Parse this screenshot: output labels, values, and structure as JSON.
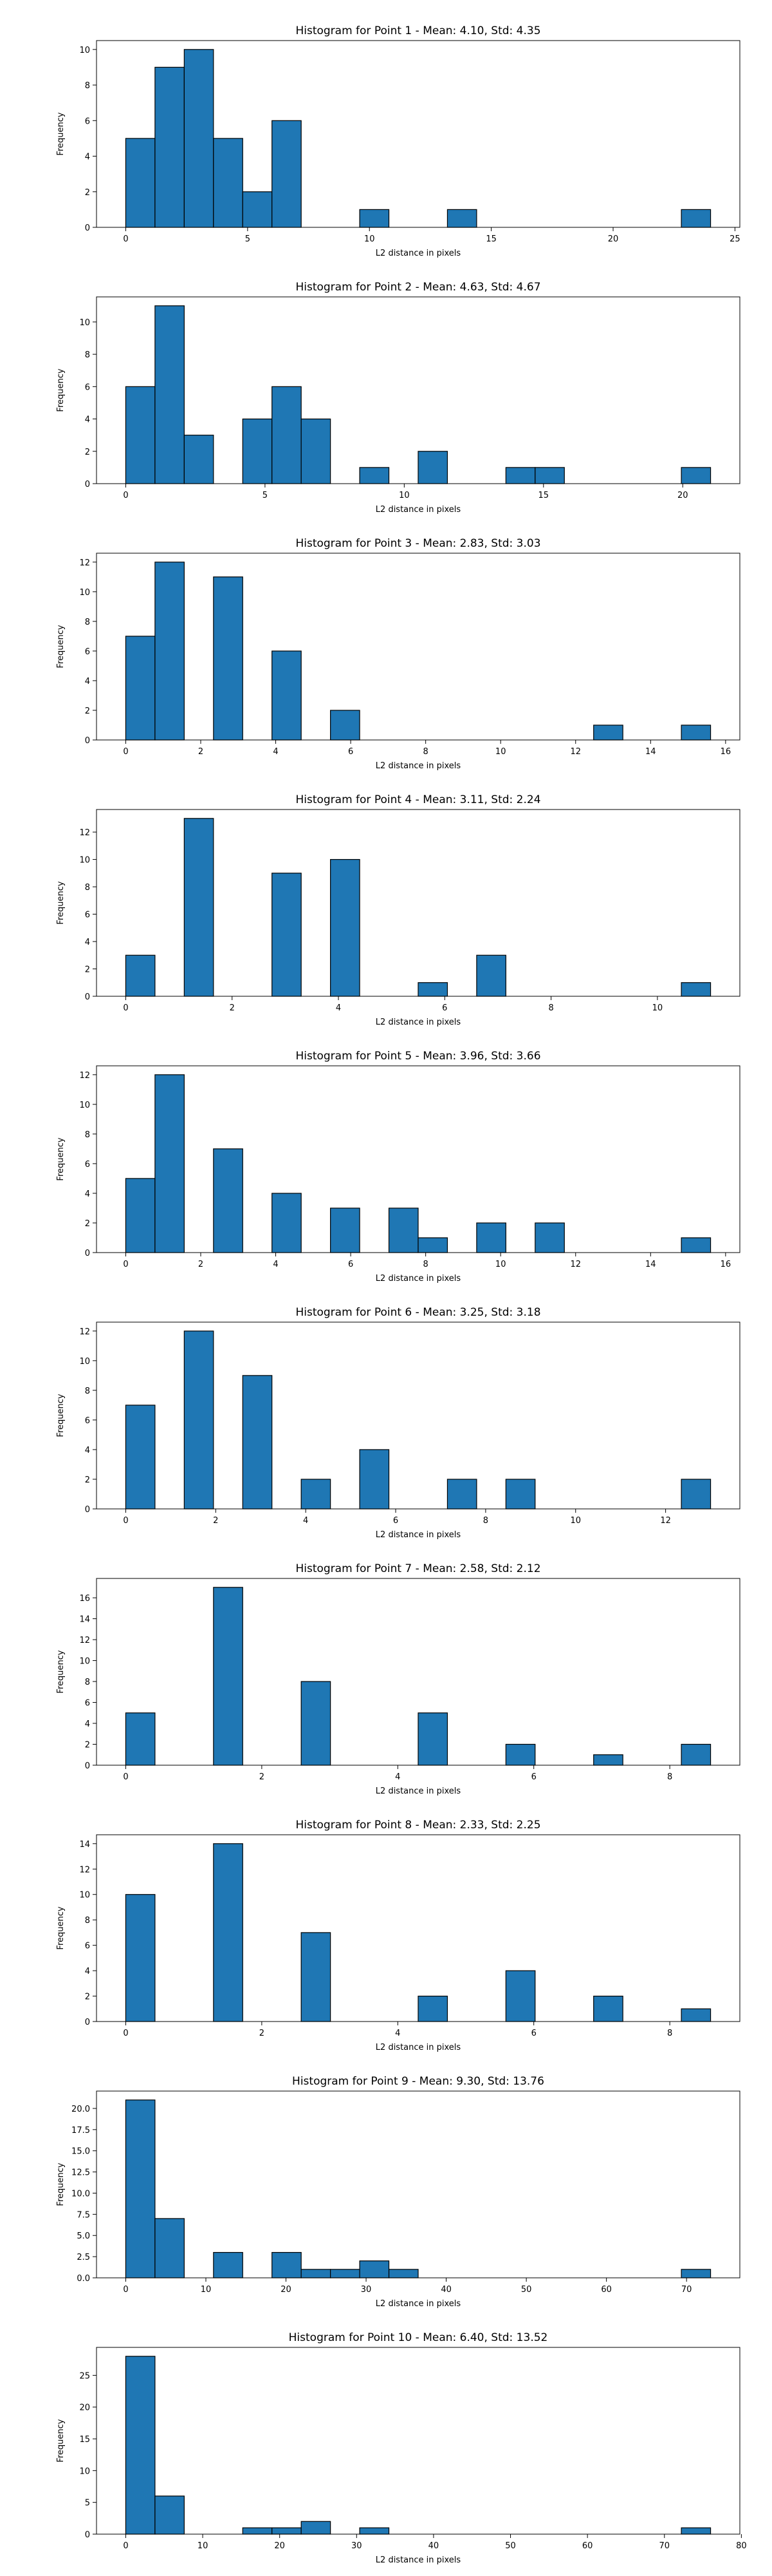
{
  "chart_data": [
    {
      "type": "bar",
      "title": "Histogram for Point 1 - Mean: 4.10, Std: 4.35",
      "xlabel": "L2 distance in pixels",
      "ylabel": "Frequency",
      "xlim": [
        -1.2,
        25.2
      ],
      "ylim": [
        0,
        10.5
      ],
      "xticks": [
        0,
        5,
        10,
        15,
        20,
        25
      ],
      "yticks": [
        0,
        2,
        4,
        6,
        8,
        10
      ],
      "bins": [
        {
          "x0": 0.0,
          "x1": 1.2,
          "count": 5
        },
        {
          "x0": 1.2,
          "x1": 2.4,
          "count": 9
        },
        {
          "x0": 2.4,
          "x1": 3.6,
          "count": 10
        },
        {
          "x0": 3.6,
          "x1": 4.8,
          "count": 5
        },
        {
          "x0": 4.8,
          "x1": 6.0,
          "count": 2
        },
        {
          "x0": 6.0,
          "x1": 7.2,
          "count": 6
        },
        {
          "x0": 9.6,
          "x1": 10.8,
          "count": 1
        },
        {
          "x0": 13.2,
          "x1": 14.4,
          "count": 1
        },
        {
          "x0": 22.8,
          "x1": 24.0,
          "count": 1
        }
      ]
    },
    {
      "type": "bar",
      "title": "Histogram for Point 2 - Mean: 4.63, Std: 4.67",
      "xlabel": "L2 distance in pixels",
      "ylabel": "Frequency",
      "xlim": [
        -1.05,
        22.05
      ],
      "ylim": [
        0,
        11.55
      ],
      "xticks": [
        0,
        5,
        10,
        15,
        20
      ],
      "yticks": [
        0,
        2,
        4,
        6,
        8,
        10
      ],
      "bins": [
        {
          "x0": 0.0,
          "x1": 1.05,
          "count": 6
        },
        {
          "x0": 1.05,
          "x1": 2.1,
          "count": 11
        },
        {
          "x0": 2.1,
          "x1": 3.15,
          "count": 3
        },
        {
          "x0": 4.2,
          "x1": 5.25,
          "count": 4
        },
        {
          "x0": 5.25,
          "x1": 6.3,
          "count": 6
        },
        {
          "x0": 6.3,
          "x1": 7.35,
          "count": 4
        },
        {
          "x0": 8.4,
          "x1": 9.45,
          "count": 1
        },
        {
          "x0": 10.5,
          "x1": 11.55,
          "count": 2
        },
        {
          "x0": 13.65,
          "x1": 14.7,
          "count": 1
        },
        {
          "x0": 14.7,
          "x1": 15.75,
          "count": 1
        },
        {
          "x0": 19.95,
          "x1": 21.0,
          "count": 1
        }
      ]
    },
    {
      "type": "bar",
      "title": "Histogram for Point 3 - Mean: 2.83, Std: 3.03",
      "xlabel": "L2 distance in pixels",
      "ylabel": "Frequency",
      "xlim": [
        -0.78,
        16.38
      ],
      "ylim": [
        0,
        12.6
      ],
      "xticks": [
        0,
        2,
        4,
        6,
        8,
        10,
        12,
        14,
        16
      ],
      "yticks": [
        0,
        2,
        4,
        6,
        8,
        10,
        12
      ],
      "bins": [
        {
          "x0": 0.0,
          "x1": 0.78,
          "count": 7
        },
        {
          "x0": 0.78,
          "x1": 1.56,
          "count": 12
        },
        {
          "x0": 2.34,
          "x1": 3.12,
          "count": 11
        },
        {
          "x0": 3.9,
          "x1": 4.68,
          "count": 6
        },
        {
          "x0": 5.46,
          "x1": 6.24,
          "count": 2
        },
        {
          "x0": 12.48,
          "x1": 13.26,
          "count": 1
        },
        {
          "x0": 14.82,
          "x1": 15.6,
          "count": 1
        }
      ]
    },
    {
      "type": "bar",
      "title": "Histogram for Point 4 - Mean: 3.11, Std: 2.24",
      "xlabel": "L2 distance in pixels",
      "ylabel": "Frequency",
      "xlim": [
        -0.55,
        11.55
      ],
      "ylim": [
        0,
        13.65
      ],
      "xticks": [
        0,
        2,
        4,
        6,
        8,
        10
      ],
      "yticks": [
        0,
        2,
        4,
        6,
        8,
        10,
        12
      ],
      "bins": [
        {
          "x0": 0.0,
          "x1": 0.55,
          "count": 3
        },
        {
          "x0": 1.1,
          "x1": 1.65,
          "count": 13
        },
        {
          "x0": 2.75,
          "x1": 3.3,
          "count": 9
        },
        {
          "x0": 3.85,
          "x1": 4.4,
          "count": 10
        },
        {
          "x0": 5.5,
          "x1": 6.05,
          "count": 1
        },
        {
          "x0": 6.6,
          "x1": 7.15,
          "count": 3
        },
        {
          "x0": 10.45,
          "x1": 11.0,
          "count": 1
        }
      ]
    },
    {
      "type": "bar",
      "title": "Histogram for Point 5 - Mean: 3.96, Std: 3.66",
      "xlabel": "L2 distance in pixels",
      "ylabel": "Frequency",
      "xlim": [
        -0.78,
        16.38
      ],
      "ylim": [
        0,
        12.6
      ],
      "xticks": [
        0,
        2,
        4,
        6,
        8,
        10,
        12,
        14,
        16
      ],
      "yticks": [
        0,
        2,
        4,
        6,
        8,
        10,
        12
      ],
      "bins": [
        {
          "x0": 0.0,
          "x1": 0.78,
          "count": 5
        },
        {
          "x0": 0.78,
          "x1": 1.56,
          "count": 12
        },
        {
          "x0": 2.34,
          "x1": 3.12,
          "count": 7
        },
        {
          "x0": 3.9,
          "x1": 4.68,
          "count": 4
        },
        {
          "x0": 5.46,
          "x1": 6.24,
          "count": 3
        },
        {
          "x0": 7.02,
          "x1": 7.8,
          "count": 3
        },
        {
          "x0": 7.8,
          "x1": 8.58,
          "count": 1
        },
        {
          "x0": 9.36,
          "x1": 10.14,
          "count": 2
        },
        {
          "x0": 10.92,
          "x1": 11.7,
          "count": 2
        },
        {
          "x0": 14.82,
          "x1": 15.6,
          "count": 1
        }
      ]
    },
    {
      "type": "bar",
      "title": "Histogram for Point 6 - Mean: 3.25, Std: 3.18",
      "xlabel": "L2 distance in pixels",
      "ylabel": "Frequency",
      "xlim": [
        -0.65,
        13.65
      ],
      "ylim": [
        0,
        12.6
      ],
      "xticks": [
        0,
        2,
        4,
        6,
        8,
        10,
        12
      ],
      "yticks": [
        0,
        2,
        4,
        6,
        8,
        10,
        12
      ],
      "bins": [
        {
          "x0": 0.0,
          "x1": 0.65,
          "count": 7
        },
        {
          "x0": 1.3,
          "x1": 1.95,
          "count": 12
        },
        {
          "x0": 2.6,
          "x1": 3.25,
          "count": 9
        },
        {
          "x0": 3.9,
          "x1": 4.55,
          "count": 2
        },
        {
          "x0": 5.2,
          "x1": 5.85,
          "count": 4
        },
        {
          "x0": 7.15,
          "x1": 7.8,
          "count": 2
        },
        {
          "x0": 8.45,
          "x1": 9.1,
          "count": 2
        },
        {
          "x0": 12.35,
          "x1": 13.0,
          "count": 2
        }
      ]
    },
    {
      "type": "bar",
      "title": "Histogram for Point 7 - Mean: 2.58, Std: 2.12",
      "xlabel": "L2 distance in pixels",
      "ylabel": "Frequency",
      "xlim": [
        -0.43,
        9.03
      ],
      "ylim": [
        0,
        17.85
      ],
      "xticks": [
        0,
        2,
        4,
        6,
        8
      ],
      "yticks": [
        0,
        2,
        4,
        6,
        8,
        10,
        12,
        14,
        16
      ],
      "bins": [
        {
          "x0": 0.0,
          "x1": 0.43,
          "count": 5
        },
        {
          "x0": 1.29,
          "x1": 1.72,
          "count": 17
        },
        {
          "x0": 2.58,
          "x1": 3.01,
          "count": 8
        },
        {
          "x0": 4.3,
          "x1": 4.73,
          "count": 5
        },
        {
          "x0": 5.59,
          "x1": 6.02,
          "count": 2
        },
        {
          "x0": 6.88,
          "x1": 7.31,
          "count": 1
        },
        {
          "x0": 8.17,
          "x1": 8.6,
          "count": 2
        }
      ]
    },
    {
      "type": "bar",
      "title": "Histogram for Point 8 - Mean: 2.33, Std: 2.25",
      "xlabel": "L2 distance in pixels",
      "ylabel": "Frequency",
      "xlim": [
        -0.43,
        9.03
      ],
      "ylim": [
        0,
        14.7
      ],
      "xticks": [
        0,
        2,
        4,
        6,
        8
      ],
      "yticks": [
        0,
        2,
        4,
        6,
        8,
        10,
        12,
        14
      ],
      "bins": [
        {
          "x0": 0.0,
          "x1": 0.43,
          "count": 10
        },
        {
          "x0": 1.29,
          "x1": 1.72,
          "count": 14
        },
        {
          "x0": 2.58,
          "x1": 3.01,
          "count": 7
        },
        {
          "x0": 4.3,
          "x1": 4.73,
          "count": 2
        },
        {
          "x0": 5.59,
          "x1": 6.02,
          "count": 4
        },
        {
          "x0": 6.88,
          "x1": 7.31,
          "count": 2
        },
        {
          "x0": 8.17,
          "x1": 8.6,
          "count": 1
        }
      ]
    },
    {
      "type": "bar",
      "title": "Histogram for Point 9 - Mean: 9.30, Std: 13.76",
      "xlabel": "L2 distance in pixels",
      "ylabel": "Frequency",
      "xlim": [
        -3.65,
        76.65
      ],
      "ylim": [
        0,
        22.05
      ],
      "xticks": [
        0,
        10,
        20,
        30,
        40,
        50,
        60,
        70
      ],
      "yticks": [
        0.0,
        2.5,
        5.0,
        7.5,
        10.0,
        12.5,
        15.0,
        17.5,
        20.0
      ],
      "ytick_format": "0.0",
      "bins": [
        {
          "x0": 0.0,
          "x1": 3.65,
          "count": 21
        },
        {
          "x0": 3.65,
          "x1": 7.3,
          "count": 7
        },
        {
          "x0": 10.95,
          "x1": 14.6,
          "count": 3
        },
        {
          "x0": 18.25,
          "x1": 21.9,
          "count": 3
        },
        {
          "x0": 21.9,
          "x1": 25.55,
          "count": 1
        },
        {
          "x0": 25.55,
          "x1": 29.2,
          "count": 1
        },
        {
          "x0": 29.2,
          "x1": 32.85,
          "count": 2
        },
        {
          "x0": 32.85,
          "x1": 36.5,
          "count": 1
        },
        {
          "x0": 69.35,
          "x1": 73.0,
          "count": 1
        }
      ]
    },
    {
      "type": "bar",
      "title": "Histogram for Point 10 - Mean: 6.40, Std: 13.52",
      "xlabel": "L2 distance in pixels",
      "ylabel": "Frequency",
      "xlim": [
        -3.8,
        79.8
      ],
      "ylim": [
        0,
        29.4
      ],
      "xticks": [
        0,
        10,
        20,
        30,
        40,
        50,
        60,
        70,
        80
      ],
      "yticks": [
        0,
        5,
        10,
        15,
        20,
        25
      ],
      "bins": [
        {
          "x0": 0.0,
          "x1": 3.8,
          "count": 28
        },
        {
          "x0": 3.8,
          "x1": 7.6,
          "count": 6
        },
        {
          "x0": 15.2,
          "x1": 19.0,
          "count": 1
        },
        {
          "x0": 19.0,
          "x1": 22.8,
          "count": 1
        },
        {
          "x0": 22.8,
          "x1": 26.6,
          "count": 2
        },
        {
          "x0": 30.4,
          "x1": 34.2,
          "count": 1
        },
        {
          "x0": 72.2,
          "x1": 76.0,
          "count": 1
        }
      ]
    }
  ]
}
